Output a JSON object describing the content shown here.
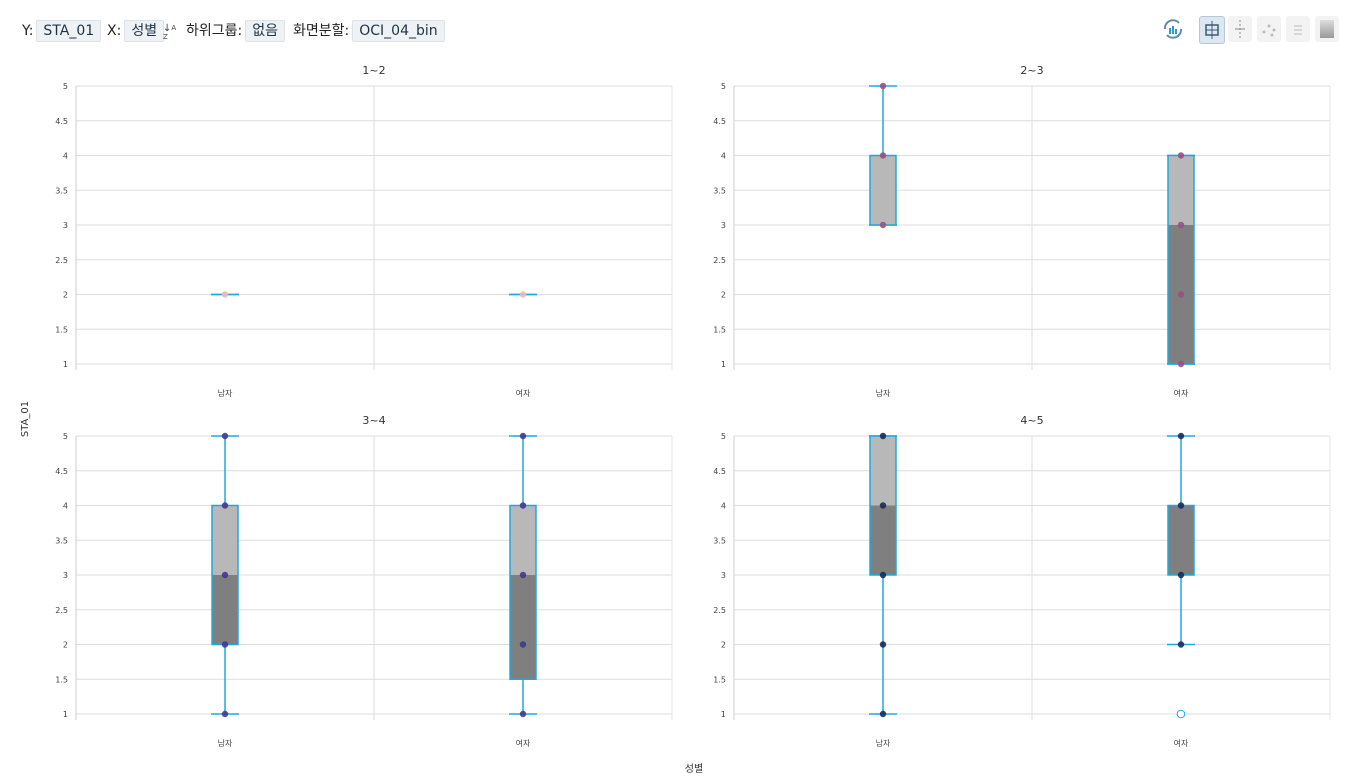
{
  "controls": {
    "y_label": "Y:",
    "y_value": "STA_01",
    "x_label": "X:",
    "x_value": "성별",
    "sort_icon": "sort-az-icon",
    "subgroup_label": "하위그룹:",
    "subgroup_value": "없음",
    "split_label": "화면분할:",
    "split_value": "OCI_04_bin"
  },
  "toolbar_icons": [
    "refresh-chart-icon",
    "boxplot-icon",
    "stripplot-icon",
    "scatter-icon",
    "dotplot-icon",
    "gradient-icon"
  ],
  "chart_data": {
    "type": "boxplot",
    "ylabel": "STA_01",
    "xlabel": "성별",
    "ylim": [
      1,
      5
    ],
    "yticks": [
      "1",
      "1.5",
      "2",
      "2.5",
      "3",
      "3.5",
      "4",
      "4.5",
      "5"
    ],
    "categories": [
      "남자",
      "여자"
    ],
    "panels": [
      {
        "title": "1~2",
        "boxes": [
          {
            "category": "남자",
            "min": 2,
            "q1": 2,
            "median": 2,
            "q3": 2,
            "max": 2,
            "points": [
              2
            ],
            "outliers": []
          },
          {
            "category": "여자",
            "min": 2,
            "q1": 2,
            "median": 2,
            "q3": 2,
            "max": 2,
            "points": [
              2
            ],
            "outliers": []
          }
        ],
        "point_color": "#f0b8b0"
      },
      {
        "title": "2~3",
        "boxes": [
          {
            "category": "남자",
            "min": 3,
            "q1": 3,
            "median": 3,
            "q3": 4,
            "max": 5,
            "points": [
              3,
              4,
              5
            ],
            "outliers": []
          },
          {
            "category": "여자",
            "min": 1,
            "q1": 1,
            "median": 3,
            "q3": 4,
            "max": 4,
            "points": [
              1,
              2,
              3,
              4
            ],
            "outliers": []
          }
        ],
        "point_color": "#9a4f86"
      },
      {
        "title": "3~4",
        "boxes": [
          {
            "category": "남자",
            "min": 1,
            "q1": 2,
            "median": 3,
            "q3": 4,
            "max": 5,
            "points": [
              1,
              2,
              3,
              4,
              5
            ],
            "outliers": []
          },
          {
            "category": "여자",
            "min": 1,
            "q1": 1.5,
            "median": 3,
            "q3": 4,
            "max": 5,
            "points": [
              1,
              2,
              3,
              4,
              5
            ],
            "outliers": []
          }
        ],
        "point_color": "#3f3a8e"
      },
      {
        "title": "4~5",
        "boxes": [
          {
            "category": "남자",
            "min": 1,
            "q1": 3,
            "median": 4,
            "q3": 5,
            "max": 5,
            "points": [
              1,
              2,
              3,
              4,
              5
            ],
            "outliers": []
          },
          {
            "category": "여자",
            "min": 2,
            "q1": 3,
            "median": 4,
            "q3": 4,
            "max": 5,
            "points": [
              2,
              3,
              4,
              5
            ],
            "outliers": [
              1
            ]
          }
        ],
        "point_color": "#1b2a5a"
      }
    ],
    "colors": {
      "box_lower": "#7f7f7f",
      "box_upper": "#b8b8b8",
      "whisker": "#1fa8e0",
      "grid": "#dddddd"
    }
  }
}
